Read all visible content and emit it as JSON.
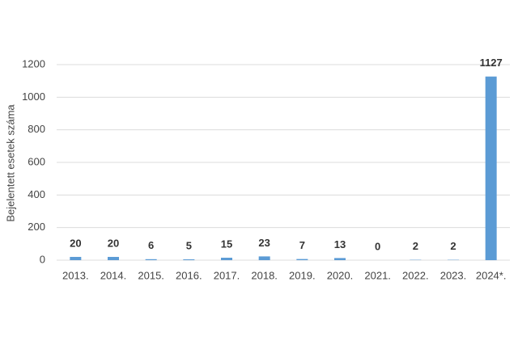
{
  "chart_data": {
    "type": "bar",
    "y_label": "Bejelentett esetek száma",
    "categories": [
      "2013.",
      "2014.",
      "2015.",
      "2016.",
      "2017.",
      "2018.",
      "2019.",
      "2020.",
      "2021.",
      "2022.",
      "2023.",
      "2024*."
    ],
    "values": [
      20,
      20,
      6,
      5,
      15,
      23,
      7,
      13,
      0,
      2,
      2,
      1127
    ],
    "color": "#5b9bd5",
    "ylim": [
      0,
      1200
    ],
    "yticks": [
      0,
      200,
      400,
      600,
      800,
      1000,
      1200
    ],
    "grid": true
  }
}
